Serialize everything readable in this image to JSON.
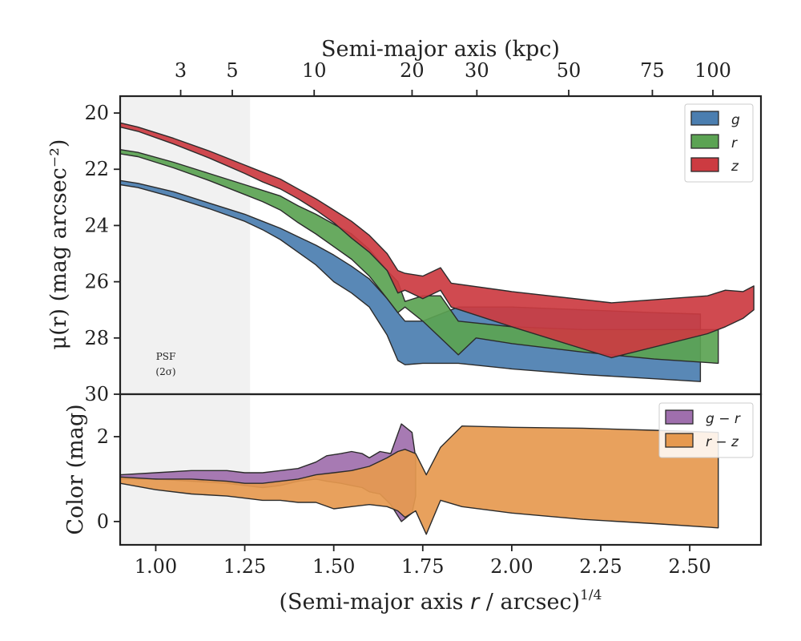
{
  "chart_data": [
    {
      "type": "area",
      "panel": "surface-brightness",
      "ylabel": "μ(r) (mag arcsec⁻²)",
      "xlabel_top": "Semi-major axis (kpc)",
      "xlim": [
        0.9,
        2.7
      ],
      "ylim": [
        30,
        19.4
      ],
      "y_inverted": true,
      "grid": false,
      "legend_placement": "top-right",
      "yticks": [
        "20",
        "22",
        "24",
        "26",
        "28",
        "30"
      ],
      "top_ticks": [
        {
          "label": "3",
          "x": 1.07
        },
        {
          "label": "5",
          "x": 1.215
        },
        {
          "label": "10",
          "x": 1.445
        },
        {
          "label": "20",
          "x": 1.72
        },
        {
          "label": "30",
          "x": 1.902
        },
        {
          "label": "50",
          "x": 2.16
        },
        {
          "label": "75",
          "x": 2.395
        },
        {
          "label": "100",
          "x": 2.565
        }
      ],
      "shaded_region": {
        "label": "PSF\n(2σ)",
        "x": [
          0.9,
          1.265
        ]
      },
      "series": [
        {
          "name": "g",
          "color": "#4b7eb0",
          "upper": [
            [
              0.9,
              22.4
            ],
            [
              0.95,
              22.5
            ],
            [
              1.05,
              22.8
            ],
            [
              1.15,
              23.2
            ],
            [
              1.25,
              23.6
            ],
            [
              1.3,
              23.85
            ],
            [
              1.35,
              24.1
            ],
            [
              1.4,
              24.4
            ],
            [
              1.45,
              24.7
            ],
            [
              1.5,
              25.05
            ],
            [
              1.55,
              25.45
            ],
            [
              1.6,
              25.9
            ],
            [
              1.65,
              26.6
            ],
            [
              1.68,
              27.1
            ],
            [
              1.7,
              27.4
            ],
            [
              1.75,
              27.4
            ],
            [
              1.85,
              26.9
            ],
            [
              2.0,
              26.9
            ],
            [
              2.2,
              27.0
            ],
            [
              2.4,
              27.1
            ],
            [
              2.53,
              27.15
            ]
          ],
          "lower": [
            [
              0.9,
              22.55
            ],
            [
              0.95,
              22.65
            ],
            [
              1.05,
              23.0
            ],
            [
              1.15,
              23.4
            ],
            [
              1.25,
              23.85
            ],
            [
              1.3,
              24.15
            ],
            [
              1.35,
              24.5
            ],
            [
              1.4,
              24.95
            ],
            [
              1.45,
              25.4
            ],
            [
              1.5,
              26.0
            ],
            [
              1.55,
              26.4
            ],
            [
              1.6,
              26.9
            ],
            [
              1.65,
              27.9
            ],
            [
              1.68,
              28.8
            ],
            [
              1.7,
              28.95
            ],
            [
              1.75,
              28.9
            ],
            [
              1.85,
              28.9
            ],
            [
              2.0,
              29.1
            ],
            [
              2.2,
              29.3
            ],
            [
              2.4,
              29.45
            ],
            [
              2.53,
              29.55
            ]
          ]
        },
        {
          "name": "r",
          "color": "#5ba353",
          "upper": [
            [
              0.9,
              21.3
            ],
            [
              0.95,
              21.4
            ],
            [
              1.05,
              21.75
            ],
            [
              1.15,
              22.15
            ],
            [
              1.25,
              22.55
            ],
            [
              1.3,
              22.75
            ],
            [
              1.35,
              22.95
            ],
            [
              1.4,
              23.3
            ],
            [
              1.45,
              23.6
            ],
            [
              1.5,
              23.95
            ],
            [
              1.55,
              24.3
            ],
            [
              1.6,
              24.85
            ],
            [
              1.65,
              25.6
            ],
            [
              1.68,
              26.0
            ],
            [
              1.7,
              26.7
            ],
            [
              1.75,
              26.5
            ],
            [
              1.8,
              26.5
            ],
            [
              1.85,
              27.4
            ],
            [
              2.0,
              27.6
            ],
            [
              2.2,
              27.7
            ],
            [
              2.4,
              27.7
            ],
            [
              2.58,
              27.7
            ]
          ],
          "lower": [
            [
              0.9,
              21.45
            ],
            [
              0.95,
              21.55
            ],
            [
              1.05,
              21.95
            ],
            [
              1.15,
              22.4
            ],
            [
              1.25,
              22.9
            ],
            [
              1.3,
              23.15
            ],
            [
              1.35,
              23.45
            ],
            [
              1.4,
              23.9
            ],
            [
              1.45,
              24.3
            ],
            [
              1.5,
              24.75
            ],
            [
              1.55,
              25.2
            ],
            [
              1.6,
              25.8
            ],
            [
              1.65,
              26.6
            ],
            [
              1.68,
              27.1
            ],
            [
              1.7,
              26.9
            ],
            [
              1.75,
              27.4
            ],
            [
              1.8,
              28.0
            ],
            [
              1.85,
              28.6
            ],
            [
              1.9,
              28.0
            ],
            [
              2.0,
              28.2
            ],
            [
              2.2,
              28.5
            ],
            [
              2.4,
              28.75
            ],
            [
              2.58,
              28.9
            ]
          ]
        },
        {
          "name": "z",
          "color": "#cc3b41",
          "upper": [
            [
              0.9,
              20.35
            ],
            [
              0.95,
              20.5
            ],
            [
              1.05,
              20.9
            ],
            [
              1.15,
              21.35
            ],
            [
              1.25,
              21.85
            ],
            [
              1.3,
              22.1
            ],
            [
              1.35,
              22.35
            ],
            [
              1.4,
              22.7
            ],
            [
              1.45,
              23.05
            ],
            [
              1.5,
              23.45
            ],
            [
              1.55,
              23.85
            ],
            [
              1.6,
              24.35
            ],
            [
              1.65,
              25.0
            ],
            [
              1.68,
              25.6
            ],
            [
              1.7,
              25.7
            ],
            [
              1.75,
              25.8
            ],
            [
              1.8,
              25.5
            ],
            [
              1.83,
              26.05
            ],
            [
              2.0,
              26.35
            ],
            [
              2.28,
              26.75
            ],
            [
              2.55,
              26.5
            ],
            [
              2.6,
              26.3
            ],
            [
              2.65,
              26.35
            ],
            [
              2.68,
              26.15
            ]
          ],
          "lower": [
            [
              0.9,
              20.5
            ],
            [
              0.95,
              20.65
            ],
            [
              1.05,
              21.1
            ],
            [
              1.15,
              21.6
            ],
            [
              1.25,
              22.15
            ],
            [
              1.3,
              22.45
            ],
            [
              1.35,
              22.7
            ],
            [
              1.4,
              23.05
            ],
            [
              1.45,
              23.45
            ],
            [
              1.5,
              23.9
            ],
            [
              1.55,
              24.45
            ],
            [
              1.6,
              24.95
            ],
            [
              1.65,
              25.6
            ],
            [
              1.68,
              26.4
            ],
            [
              1.7,
              26.3
            ],
            [
              1.75,
              26.6
            ],
            [
              1.8,
              26.3
            ],
            [
              1.83,
              26.9
            ],
            [
              2.0,
              27.6
            ],
            [
              2.28,
              28.7
            ],
            [
              2.55,
              27.85
            ],
            [
              2.6,
              27.6
            ],
            [
              2.65,
              27.3
            ],
            [
              2.68,
              27.0
            ]
          ]
        }
      ]
    },
    {
      "type": "area",
      "panel": "color",
      "ylabel": "Color (mag)",
      "xlabel": "(Semi-major axis r / arcsec)1/4",
      "xlim": [
        0.9,
        2.7
      ],
      "ylim": [
        -0.55,
        3.0
      ],
      "grid": false,
      "legend_placement": "top-right",
      "xticks": [
        "1.00",
        "1.25",
        "1.50",
        "1.75",
        "2.00",
        "2.25",
        "2.50"
      ],
      "yticks": [
        "0",
        "2"
      ],
      "shaded_region": {
        "x": [
          0.9,
          1.265
        ]
      },
      "series": [
        {
          "name": "g − r",
          "color": "#9f6fad",
          "upper": [
            [
              0.9,
              1.1
            ],
            [
              1.0,
              1.15
            ],
            [
              1.1,
              1.2
            ],
            [
              1.2,
              1.2
            ],
            [
              1.25,
              1.15
            ],
            [
              1.3,
              1.15
            ],
            [
              1.35,
              1.2
            ],
            [
              1.4,
              1.25
            ],
            [
              1.45,
              1.4
            ],
            [
              1.48,
              1.55
            ],
            [
              1.52,
              1.6
            ],
            [
              1.55,
              1.65
            ],
            [
              1.58,
              1.6
            ],
            [
              1.6,
              1.5
            ],
            [
              1.63,
              1.65
            ],
            [
              1.66,
              1.6
            ],
            [
              1.69,
              2.3
            ],
            [
              1.72,
              2.1
            ],
            [
              1.73,
              1.5
            ]
          ],
          "lower": [
            [
              0.9,
              1.0
            ],
            [
              1.0,
              1.0
            ],
            [
              1.1,
              0.95
            ],
            [
              1.2,
              0.9
            ],
            [
              1.25,
              0.85
            ],
            [
              1.3,
              0.8
            ],
            [
              1.35,
              0.85
            ],
            [
              1.4,
              0.95
            ],
            [
              1.45,
              1.0
            ],
            [
              1.48,
              0.95
            ],
            [
              1.52,
              0.9
            ],
            [
              1.55,
              0.85
            ],
            [
              1.58,
              0.8
            ],
            [
              1.6,
              0.7
            ],
            [
              1.63,
              0.65
            ],
            [
              1.66,
              0.4
            ],
            [
              1.69,
              0.0
            ],
            [
              1.72,
              0.2
            ],
            [
              1.73,
              0.6
            ]
          ]
        },
        {
          "name": "r − z",
          "color": "#e6994f",
          "upper": [
            [
              0.9,
              1.05
            ],
            [
              1.0,
              1.0
            ],
            [
              1.1,
              1.0
            ],
            [
              1.2,
              0.95
            ],
            [
              1.25,
              0.9
            ],
            [
              1.3,
              0.9
            ],
            [
              1.35,
              0.95
            ],
            [
              1.4,
              1.0
            ],
            [
              1.45,
              1.1
            ],
            [
              1.5,
              1.15
            ],
            [
              1.55,
              1.2
            ],
            [
              1.6,
              1.3
            ],
            [
              1.65,
              1.5
            ],
            [
              1.68,
              1.65
            ],
            [
              1.7,
              1.7
            ],
            [
              1.73,
              1.6
            ],
            [
              1.76,
              1.1
            ],
            [
              1.8,
              1.75
            ],
            [
              1.86,
              2.25
            ],
            [
              2.0,
              2.22
            ],
            [
              2.2,
              2.2
            ],
            [
              2.4,
              2.15
            ],
            [
              2.58,
              2.1
            ]
          ],
          "lower": [
            [
              0.9,
              0.9
            ],
            [
              1.0,
              0.75
            ],
            [
              1.1,
              0.65
            ],
            [
              1.2,
              0.6
            ],
            [
              1.25,
              0.55
            ],
            [
              1.3,
              0.5
            ],
            [
              1.35,
              0.5
            ],
            [
              1.4,
              0.45
            ],
            [
              1.45,
              0.45
            ],
            [
              1.5,
              0.3
            ],
            [
              1.55,
              0.35
            ],
            [
              1.6,
              0.4
            ],
            [
              1.65,
              0.35
            ],
            [
              1.68,
              0.25
            ],
            [
              1.7,
              0.1
            ],
            [
              1.73,
              0.25
            ],
            [
              1.76,
              -0.3
            ],
            [
              1.8,
              0.5
            ],
            [
              1.86,
              0.35
            ],
            [
              2.0,
              0.2
            ],
            [
              2.2,
              0.05
            ],
            [
              2.4,
              -0.05
            ],
            [
              2.58,
              -0.15
            ]
          ]
        }
      ]
    }
  ]
}
